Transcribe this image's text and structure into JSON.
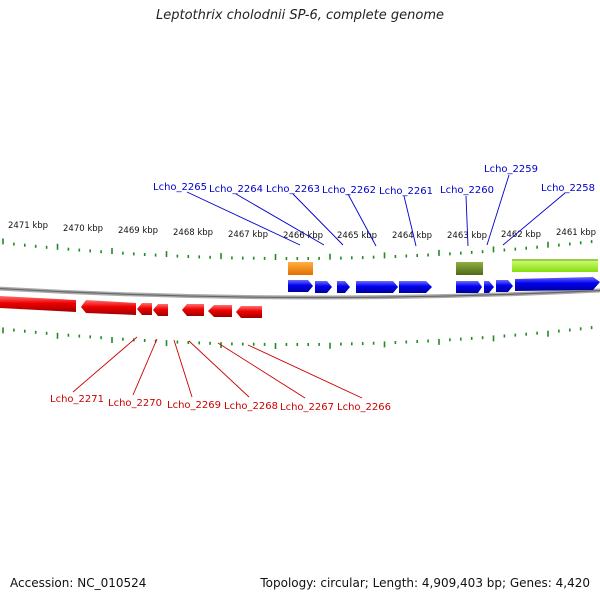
{
  "title": "Leptothrix cholodnii SP-6, complete genome",
  "footer": {
    "accession": "Accession: NC_010524",
    "summary": "Topology: circular; Length: 4,909,403 bp; Genes: 4,420"
  },
  "colors": {
    "forward_gene": "#0000ee",
    "reverse_gene": "#ee0000",
    "tick": "#228b22",
    "backbone": "#888888",
    "forward_label": "#0000cc",
    "reverse_label": "#cc0000"
  },
  "scale_labels": [
    "2471 kbp",
    "2470 kbp",
    "2469 kbp",
    "2468 kbp",
    "2467 kbp",
    "2466 kbp",
    "2465 kbp",
    "2464 kbp",
    "2463 kbp",
    "2462 kbp",
    "2461 kbp"
  ],
  "forward_labels": [
    "Lcho_2265",
    "Lcho_2264",
    "Lcho_2263",
    "Lcho_2262",
    "Lcho_2261",
    "Lcho_2260",
    "Lcho_2259",
    "Lcho_2258"
  ],
  "reverse_labels": [
    "Lcho_2271",
    "Lcho_2270",
    "Lcho_2269",
    "Lcho_2268",
    "Lcho_2267",
    "Lcho_2266"
  ],
  "feature_colors": [
    "#ff8c00",
    "#6b8e23",
    "#adff2f"
  ]
}
